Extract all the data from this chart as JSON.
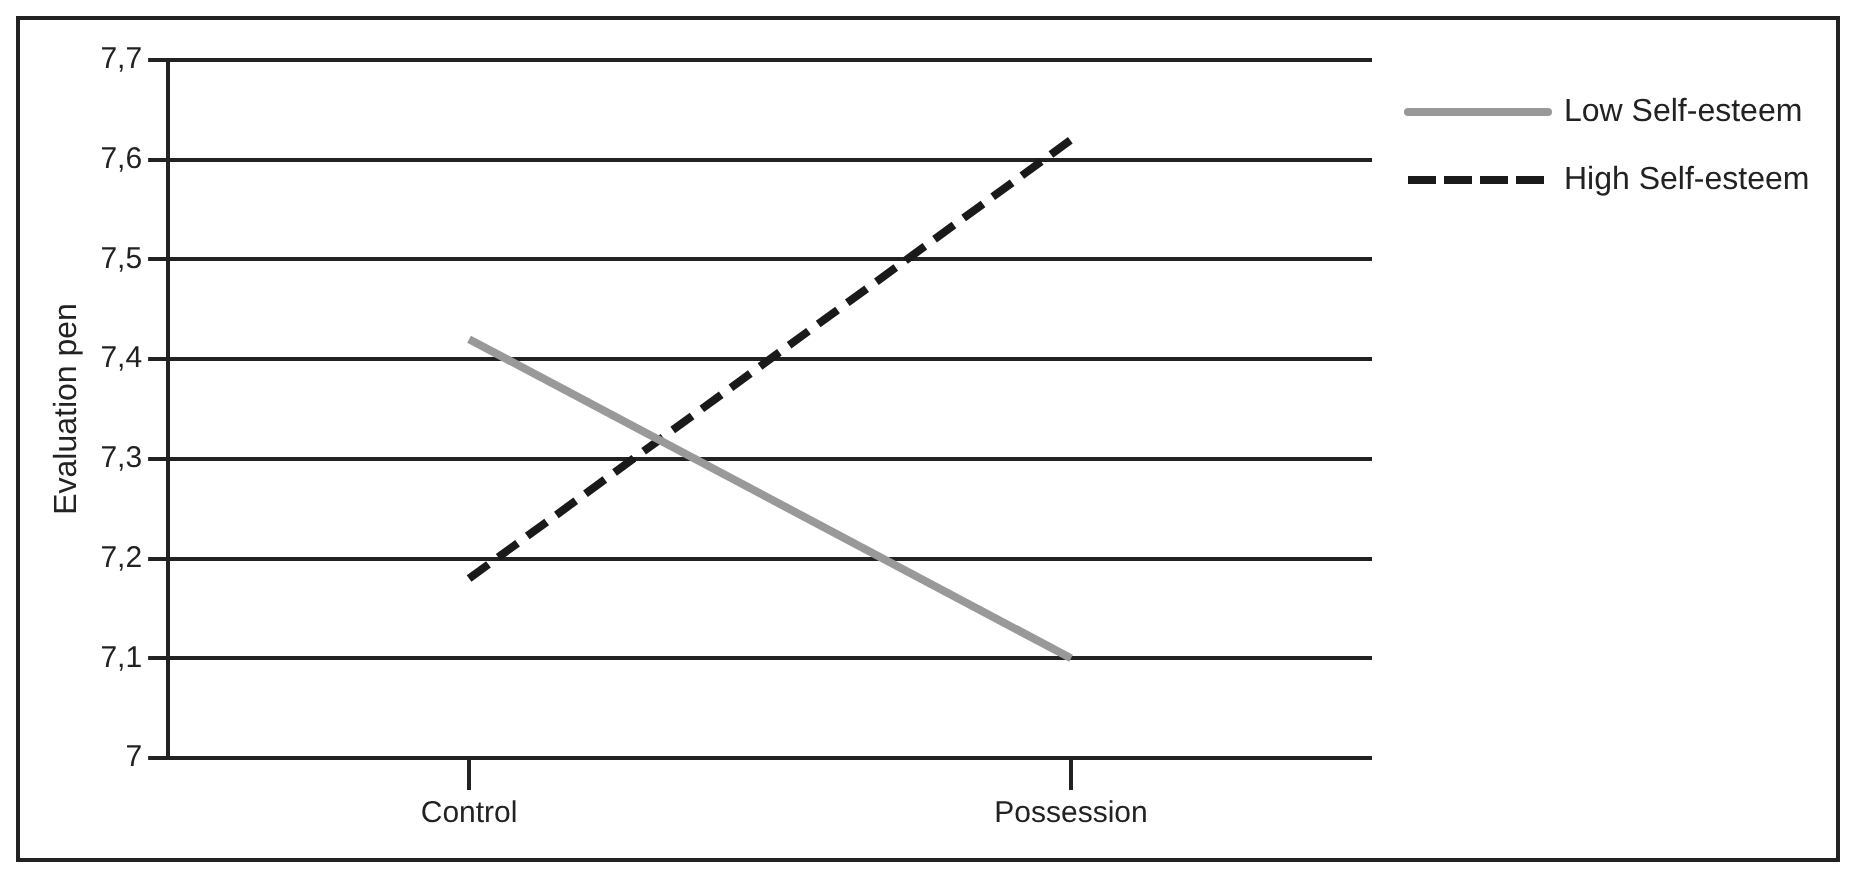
{
  "chart_data": {
    "type": "line",
    "ylabel": "Evaluation pen",
    "categories": [
      "Control",
      "Possession"
    ],
    "series": [
      {
        "name": "Low Self-esteem",
        "color": "#999999",
        "values": [
          7.42,
          7.1
        ],
        "line_style": "solid"
      },
      {
        "name": "High Self-esteem",
        "color": "#1a1a1a",
        "values": [
          7.18,
          7.62
        ],
        "line_style": "dashed"
      }
    ],
    "ylim": [
      7,
      7.7
    ],
    "yticks": [
      7,
      {
        "value": 7.1,
        "label": "7,1"
      },
      {
        "value": 7.2,
        "label": "7,2"
      },
      {
        "value": 7.3,
        "label": "7,3"
      },
      {
        "value": 7.4,
        "label": "7,4"
      },
      {
        "value": 7.5,
        "label": "7,5"
      },
      {
        "value": 7.6,
        "label": "7,6"
      },
      {
        "value": 7.7,
        "label": "7,7"
      }
    ],
    "grid": "y",
    "legend": "top right",
    "marker": "none"
  }
}
